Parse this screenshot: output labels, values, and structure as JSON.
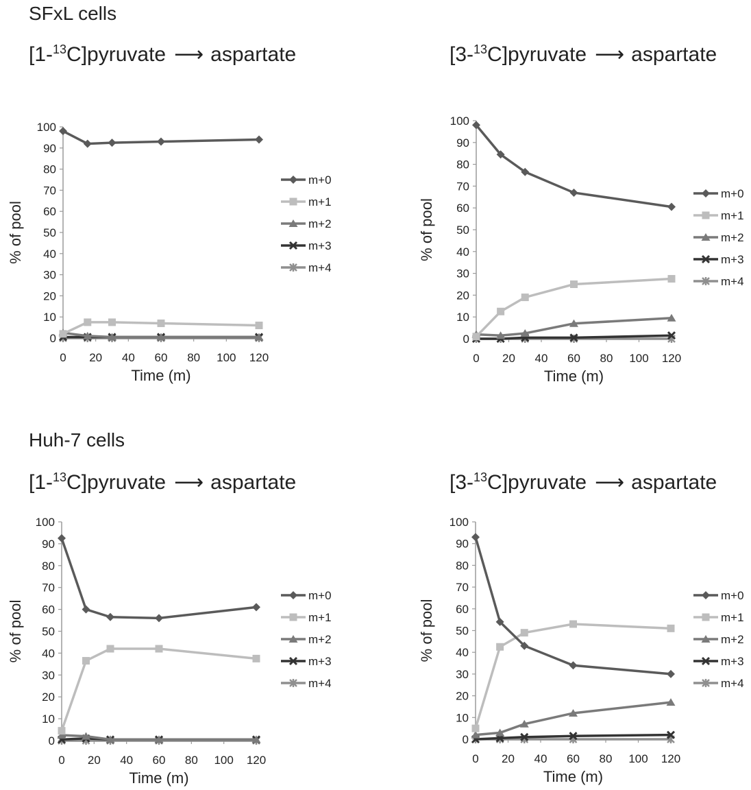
{
  "sections": [
    {
      "label": "SFxL cells"
    },
    {
      "label": "Huh-7 cells"
    }
  ],
  "colors": {
    "m+0": "#5a5a5a",
    "m+1": "#bdbdbd",
    "m+2": "#7a7a7a",
    "m+3": "#333333",
    "m+4": "#8f8f8f",
    "axis": "#9a9a9a"
  },
  "chart_data": [
    {
      "type": "line",
      "title_pre": "[1-",
      "title_sup": "13",
      "title_post": "C]pyruvate",
      "title_arrow": "⟶",
      "title_target": "aspartate",
      "xlabel": "Time (m)",
      "ylabel": "% of pool",
      "xlim": [
        0,
        120
      ],
      "ylim": [
        0,
        100
      ],
      "xticks": [
        0,
        20,
        40,
        60,
        80,
        100,
        120
      ],
      "yticks": [
        0,
        10,
        20,
        30,
        40,
        50,
        60,
        70,
        80,
        90,
        100
      ],
      "x": [
        0,
        15,
        30,
        60,
        120
      ],
      "legend_position": "right",
      "series": [
        {
          "name": "m+0",
          "marker": "diamond",
          "values": [
            98,
            92,
            92.5,
            93,
            94
          ]
        },
        {
          "name": "m+1",
          "marker": "square",
          "values": [
            2,
            7.5,
            7.5,
            7,
            6
          ]
        },
        {
          "name": "m+2",
          "marker": "triangle",
          "values": [
            2.5,
            1,
            0.5,
            0.5,
            0.5
          ]
        },
        {
          "name": "m+3",
          "marker": "x",
          "values": [
            0.5,
            0.5,
            0.5,
            0.5,
            0.5
          ]
        },
        {
          "name": "m+4",
          "marker": "asterisk",
          "values": [
            0,
            0,
            0,
            0,
            0
          ]
        }
      ]
    },
    {
      "type": "line",
      "title_pre": "[3-",
      "title_sup": "13",
      "title_post": "C]pyruvate",
      "title_arrow": "⟶",
      "title_target": "aspartate",
      "xlabel": "Time (m)",
      "ylabel": "% of pool",
      "xlim": [
        0,
        120
      ],
      "ylim": [
        0,
        100
      ],
      "xticks": [
        0,
        20,
        40,
        60,
        80,
        100,
        120
      ],
      "yticks": [
        0,
        10,
        20,
        30,
        40,
        50,
        60,
        70,
        80,
        90,
        100
      ],
      "x": [
        0,
        15,
        30,
        60,
        120
      ],
      "legend_position": "right",
      "series": [
        {
          "name": "m+0",
          "marker": "diamond",
          "values": [
            98,
            84.5,
            76.5,
            67,
            60.5
          ]
        },
        {
          "name": "m+1",
          "marker": "square",
          "values": [
            1,
            12.5,
            19,
            25,
            27.5
          ]
        },
        {
          "name": "m+2",
          "marker": "triangle",
          "values": [
            2,
            1.5,
            2.5,
            7,
            9.5
          ]
        },
        {
          "name": "m+3",
          "marker": "x",
          "values": [
            0,
            0,
            0.5,
            0.5,
            1.5
          ]
        },
        {
          "name": "m+4",
          "marker": "asterisk",
          "values": [
            0,
            0,
            0,
            0,
            0
          ]
        }
      ]
    },
    {
      "type": "line",
      "title_pre": "[1-",
      "title_sup": "13",
      "title_post": "C]pyruvate",
      "title_arrow": "⟶",
      "title_target": "aspartate",
      "xlabel": "Time (m)",
      "ylabel": "% of pool",
      "xlim": [
        0,
        120
      ],
      "ylim": [
        0,
        100
      ],
      "xticks": [
        0,
        20,
        40,
        60,
        80,
        100,
        120
      ],
      "yticks": [
        0,
        10,
        20,
        30,
        40,
        50,
        60,
        70,
        80,
        90,
        100
      ],
      "x": [
        0,
        15,
        30,
        60,
        120
      ],
      "legend_position": "right",
      "series": [
        {
          "name": "m+0",
          "marker": "diamond",
          "values": [
            92.5,
            60,
            56.5,
            56,
            61
          ]
        },
        {
          "name": "m+1",
          "marker": "square",
          "values": [
            4.5,
            36.5,
            42,
            42,
            37.5
          ]
        },
        {
          "name": "m+2",
          "marker": "triangle",
          "values": [
            2.5,
            2,
            0.5,
            0.5,
            0.5
          ]
        },
        {
          "name": "m+3",
          "marker": "x",
          "values": [
            0.5,
            1,
            0.5,
            0.5,
            0.5
          ]
        },
        {
          "name": "m+4",
          "marker": "asterisk",
          "values": [
            0,
            0,
            0,
            0,
            0
          ]
        }
      ]
    },
    {
      "type": "line",
      "title_pre": "[3-",
      "title_sup": "13",
      "title_post": "C]pyruvate",
      "title_arrow": "⟶",
      "title_target": "aspartate",
      "xlabel": "Time (m)",
      "ylabel": "% of pool",
      "xlim": [
        0,
        120
      ],
      "ylim": [
        0,
        100
      ],
      "xticks": [
        0,
        20,
        40,
        60,
        80,
        100,
        120
      ],
      "yticks": [
        0,
        10,
        20,
        30,
        40,
        50,
        60,
        70,
        80,
        90,
        100
      ],
      "x": [
        0,
        15,
        30,
        60,
        120
      ],
      "legend_position": "right",
      "series": [
        {
          "name": "m+0",
          "marker": "diamond",
          "values": [
            93,
            54,
            43,
            34,
            30
          ]
        },
        {
          "name": "m+1",
          "marker": "square",
          "values": [
            5,
            42.5,
            49,
            53,
            51
          ]
        },
        {
          "name": "m+2",
          "marker": "triangle",
          "values": [
            2,
            3,
            7,
            12,
            17
          ]
        },
        {
          "name": "m+3",
          "marker": "x",
          "values": [
            0,
            0.5,
            1,
            1.5,
            2
          ]
        },
        {
          "name": "m+4",
          "marker": "asterisk",
          "values": [
            0,
            0,
            0,
            0,
            0
          ]
        }
      ]
    }
  ]
}
